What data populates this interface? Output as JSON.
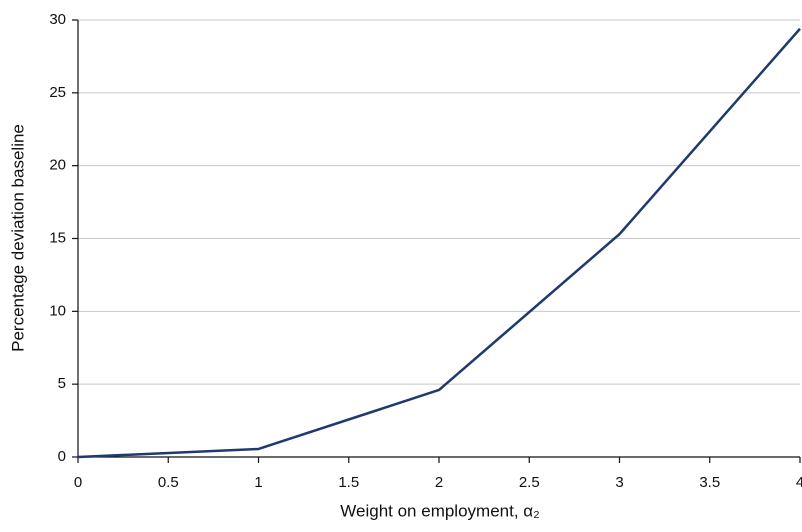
{
  "chart_data": {
    "type": "line",
    "x_label": "Weight on employment, α₂",
    "y_label": "Percentage deviation baseline",
    "x": [
      0,
      1,
      2,
      3,
      4
    ],
    "values": [
      0,
      0.55,
      4.6,
      15.3,
      29.4
    ],
    "color": "#1f3a6e",
    "xlim": [
      0,
      4
    ],
    "xticks": [
      0,
      0.5,
      1,
      1.5,
      2,
      2.5,
      3,
      3.5,
      4
    ],
    "ylim": [
      0,
      30
    ],
    "yticks": [
      0,
      5,
      10,
      15,
      20,
      25,
      30
    ],
    "grid": true
  }
}
